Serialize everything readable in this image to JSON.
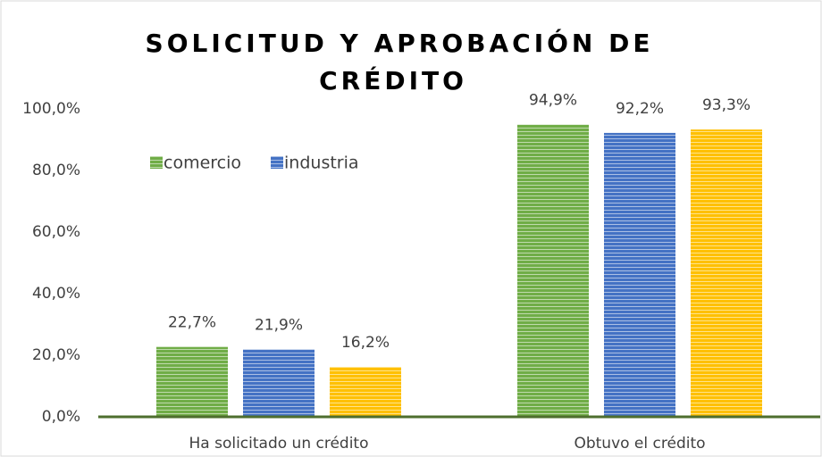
{
  "chart_data": {
    "type": "bar",
    "title": [
      "SOLICITUD Y APROBACIÓN DE",
      "CRÉDITO"
    ],
    "categories": [
      "Ha solicitado un crédito",
      "Obtuvo el crédito"
    ],
    "series": [
      {
        "name": "comercio",
        "color": "#70ad47",
        "values": [
          22.7,
          94.9
        ],
        "value_labels": [
          "22,7%",
          "94,9%"
        ]
      },
      {
        "name": "industria",
        "color": "#4472c4",
        "values": [
          21.9,
          92.2
        ],
        "value_labels": [
          "21,9%",
          "92,2%"
        ]
      },
      {
        "color": "#ffc000",
        "values": [
          16.2,
          93.3
        ],
        "value_labels": [
          "16,2%",
          "93,3%"
        ]
      }
    ],
    "ylim": [
      0,
      100
    ],
    "yticks": [
      {
        "value": 0,
        "label": "0,0%"
      },
      {
        "value": 20,
        "label": "20,0%"
      },
      {
        "value": 40,
        "label": "40,0%"
      },
      {
        "value": 60,
        "label": "60,0%"
      },
      {
        "value": 80,
        "label": "80,0%"
      },
      {
        "value": 100,
        "label": "100,0%"
      }
    ],
    "grid": false,
    "legend": "top-left"
  }
}
